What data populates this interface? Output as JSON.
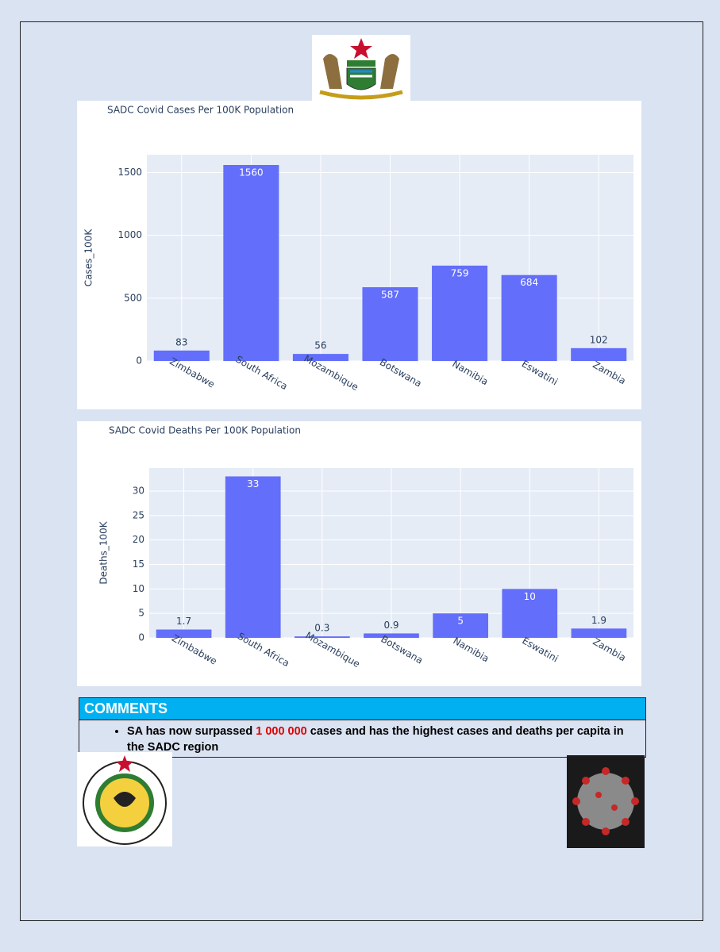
{
  "chart_data": [
    {
      "type": "bar",
      "title": "SADC Covid Cases Per 100K Population",
      "y_label": "Cases_100K",
      "categories": [
        "Zimbabwe",
        "South Africa",
        "Mozambique",
        "Botswana",
        "Namibia",
        "Eswatini",
        "Zambia"
      ],
      "values": [
        83,
        1560,
        56,
        587,
        759,
        684,
        102
      ],
      "color": "#636efa",
      "ylim": [
        0,
        1642
      ],
      "yticks": [
        0,
        500,
        1000,
        1500
      ],
      "grid": true
    },
    {
      "type": "bar",
      "title": "SADC Covid Deaths Per 100K Population",
      "y_label": "Deaths_100K",
      "categories": [
        "Zimbabwe",
        "South Africa",
        "Mozambique",
        "Botswana",
        "Namibia",
        "Eswatini",
        "Zambia"
      ],
      "values": [
        1.7,
        33,
        0.3,
        0.9,
        5,
        10,
        1.9
      ],
      "color": "#636efa",
      "ylim": [
        0,
        34.7
      ],
      "yticks": [
        0,
        5,
        10,
        15,
        20,
        25,
        30
      ],
      "grid": true
    }
  ],
  "comments": {
    "title": "COMMENTS",
    "items": [
      {
        "before": "SA has now surpassed ",
        "highlight": "1 000 000",
        "after": " cases and has the highest cases and deaths per capita in the SADC region"
      }
    ]
  }
}
